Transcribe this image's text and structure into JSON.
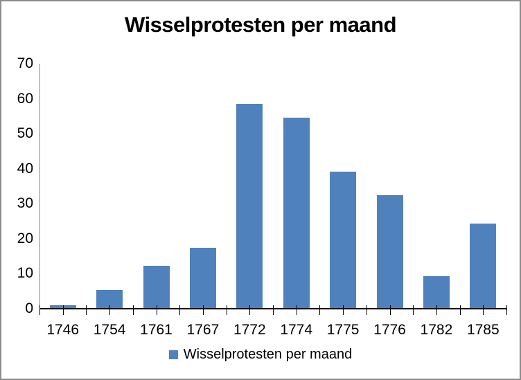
{
  "chart_data": {
    "type": "bar",
    "title": "Wisselprotesten per maand",
    "categories": [
      "1746",
      "1754",
      "1761",
      "1767",
      "1772",
      "1774",
      "1775",
      "1776",
      "1782",
      "1785"
    ],
    "values": [
      1.0,
      5.3,
      12.3,
      17.4,
      58.5,
      54.5,
      39.1,
      32.5,
      9.3,
      24.4
    ],
    "series": [
      {
        "name": "Wisselprotesten per maand",
        "values": [
          1.0,
          5.3,
          12.3,
          17.4,
          58.5,
          54.5,
          39.1,
          32.5,
          9.3,
          24.4
        ]
      }
    ],
    "xlabel": "",
    "ylabel": "",
    "ylim": [
      0,
      70
    ],
    "ytick_step": 10,
    "ytick_labels": [
      "0",
      "10",
      "20",
      "30",
      "40",
      "50",
      "60",
      "70"
    ],
    "grid": false,
    "legend_position": "bottom",
    "bar_color": "#4F81BD"
  },
  "legend": {
    "label": "Wisselprotesten per maand"
  },
  "colors": {
    "bar": "#4F81BD",
    "frame_border": "#8B8B8B",
    "y_axis_line": "#868686",
    "x_axis_line": "#000000",
    "text": "#000000"
  }
}
